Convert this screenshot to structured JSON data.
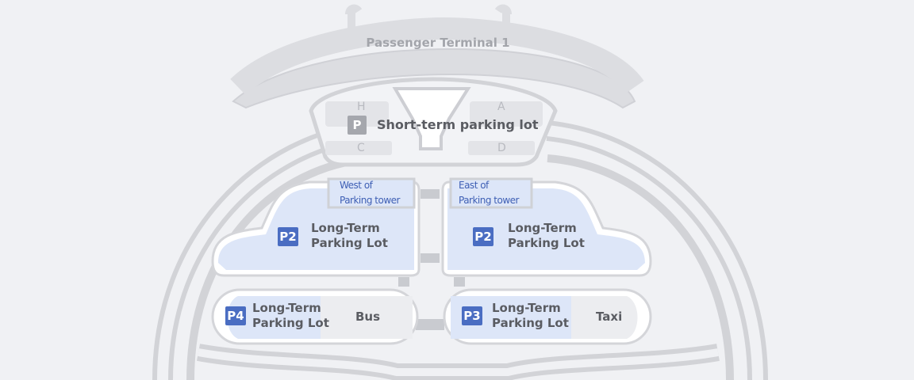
{
  "colors": {
    "background": "#f0f1f4",
    "road": "#d9dadd",
    "road_edge": "#c4c5ca",
    "lot_fill": "#dde6f8",
    "badge_blue": "#4a6dc2",
    "badge_gray": "#a5a7ad",
    "tower_text": "#3e5fb4"
  },
  "map": {
    "terminal_label": "Passenger Terminal 1",
    "gates": [
      "H",
      "A",
      "C",
      "D"
    ],
    "short_term": {
      "badge": "P",
      "label": "Short-term parking lot"
    },
    "west_tower": {
      "line1": "West of",
      "line2": "Parking tower"
    },
    "east_tower": {
      "line1": "East of",
      "line2": "Parking tower"
    },
    "p2_west": {
      "badge": "P2",
      "line1": "Long-Term",
      "line2": "Parking Lot"
    },
    "p2_east": {
      "badge": "P2",
      "line1": "Long-Term",
      "line2": "Parking Lot"
    },
    "p4": {
      "badge": "P4",
      "line1": "Long-Term",
      "line2": "Parking Lot",
      "service": "Bus"
    },
    "p3": {
      "badge": "P3",
      "line1": "Long-Term",
      "line2": "Parking Lot",
      "service": "Taxi"
    }
  }
}
